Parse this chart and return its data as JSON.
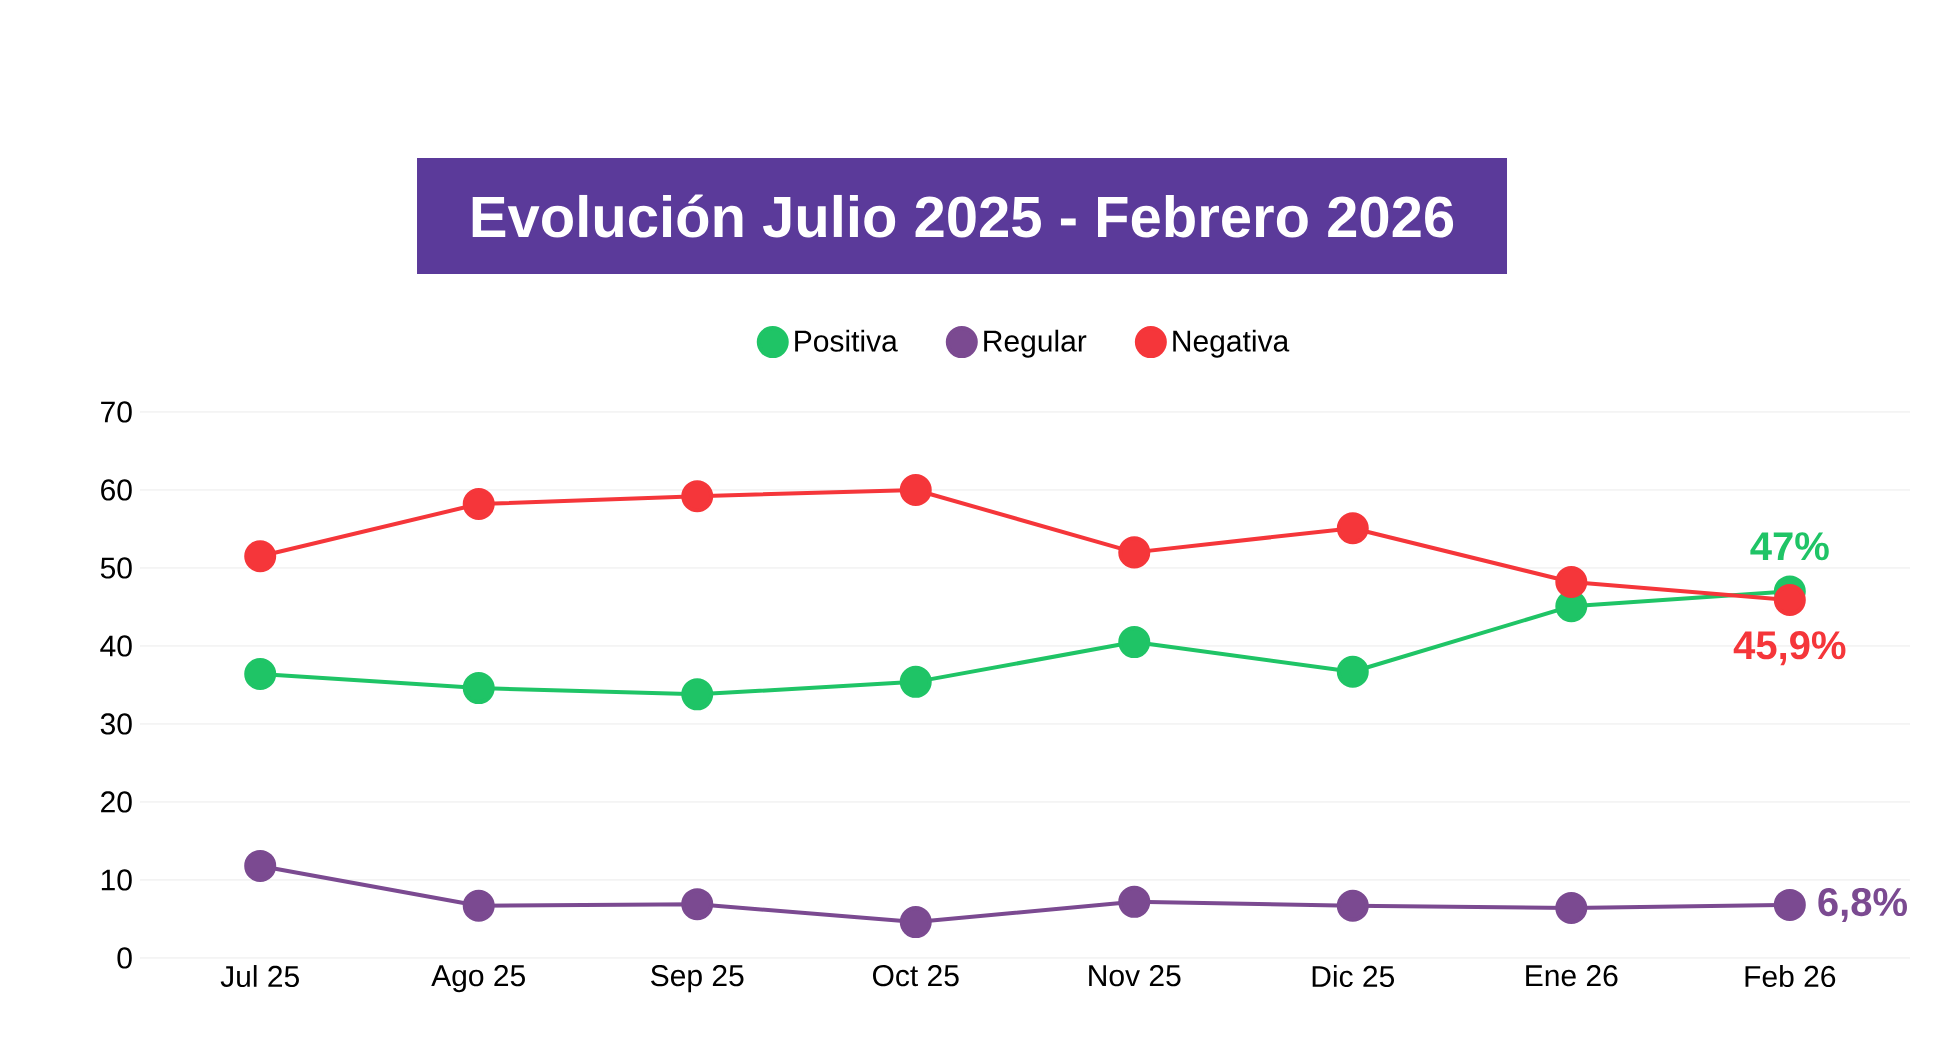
{
  "chart_data": {
    "type": "line",
    "title": "Evolución Julio 2025 - Febrero 2026",
    "categories": [
      "Jul 25",
      "Ago 25",
      "Sep 25",
      "Oct 25",
      "Nov 25",
      "Dic 25",
      "Ene 26",
      "Feb 26"
    ],
    "series": [
      {
        "name": "Positiva",
        "color": "#1fc466",
        "values": [
          36.4,
          34.6,
          33.8,
          35.4,
          40.5,
          36.7,
          45.1,
          47
        ],
        "value_labels": [
          null,
          null,
          null,
          null,
          null,
          null,
          null,
          "47%"
        ]
      },
      {
        "name": "Regular",
        "color": "#7b4a91",
        "values": [
          11.8,
          6.7,
          6.9,
          4.6,
          7.2,
          6.7,
          6.4,
          6.8
        ],
        "value_labels": [
          null,
          null,
          null,
          null,
          null,
          null,
          null,
          "6,8%"
        ]
      },
      {
        "name": "Negativa",
        "color": "#f5363a",
        "values": [
          51.5,
          58.2,
          59.2,
          60,
          52,
          55.1,
          48.2,
          45.9
        ],
        "value_labels": [
          null,
          null,
          null,
          null,
          null,
          null,
          null,
          "45,9%"
        ]
      }
    ],
    "ylim": [
      0,
      70
    ],
    "yticks": [
      0,
      10,
      20,
      30,
      40,
      50,
      60,
      70
    ],
    "grid": "y",
    "legend": "top",
    "marker": "circle",
    "line_style": "solid"
  }
}
